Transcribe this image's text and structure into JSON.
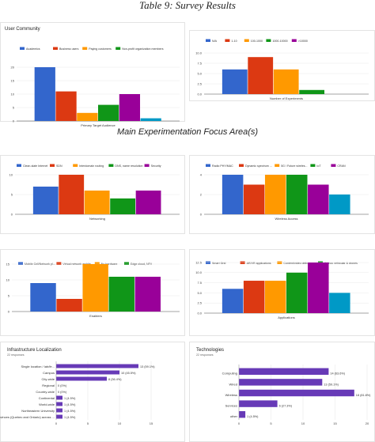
{
  "page": {
    "title": "Table 9: Survey Results",
    "section_title": "Main Experimentation Focus Area(s)"
  },
  "chart_data": [
    {
      "id": "user-community",
      "type": "bar",
      "title": "User Community",
      "xlabel": "Primary Target Audience",
      "ylim": [
        0,
        20
      ],
      "yticks": [
        "0",
        "5",
        "10",
        "15",
        "20"
      ],
      "categories": [
        ""
      ],
      "series": [
        {
          "name": "Academics",
          "values": [
            20
          ],
          "color": "#3366cc"
        },
        {
          "name": "Business users",
          "values": [
            11
          ],
          "color": "#dc3912"
        },
        {
          "name": "Paying customers",
          "values": [
            3
          ],
          "color": "#ff9900"
        },
        {
          "name": "Non-profit organization members",
          "values": [
            6
          ],
          "color": "#109618"
        },
        {
          "name": "",
          "values": [
            10
          ],
          "color": "#990099"
        },
        {
          "name": "",
          "values": [
            1
          ],
          "color": "#0099c6"
        }
      ],
      "legend": "top"
    },
    {
      "id": "num-experiments",
      "type": "bar",
      "title": "",
      "xlabel": "Number of Experiments",
      "ylim": [
        0,
        10
      ],
      "yticks": [
        "0.0",
        "2.5",
        "5.0",
        "7.5",
        "10.0"
      ],
      "categories": [
        ""
      ],
      "series": [
        {
          "name": "N/A",
          "values": [
            6
          ],
          "color": "#3366cc"
        },
        {
          "name": "1-10",
          "values": [
            9
          ],
          "color": "#dc3912"
        },
        {
          "name": "100-1000",
          "values": [
            6
          ],
          "color": "#ff9900"
        },
        {
          "name": "1000-10000",
          "values": [
            1
          ],
          "color": "#109618"
        },
        {
          "name": ">10000",
          "values": [
            0
          ],
          "color": "#990099"
        }
      ],
      "legend": "top"
    },
    {
      "id": "networking",
      "type": "bar",
      "title": "",
      "xlabel": "Networking",
      "ylim": [
        0,
        10
      ],
      "yticks": [
        "0",
        "5",
        "10"
      ],
      "categories": [
        ""
      ],
      "series": [
        {
          "name": "Clean-slate Internet",
          "values": [
            7
          ],
          "color": "#3366cc"
        },
        {
          "name": "SDN",
          "values": [
            11
          ],
          "color": "#dc3912"
        },
        {
          "name": "Interdomain routing",
          "values": [
            6
          ],
          "color": "#ff9900"
        },
        {
          "name": "DNS, name resolution",
          "values": [
            4
          ],
          "color": "#109618"
        },
        {
          "name": "Security",
          "values": [
            6
          ],
          "color": "#990099"
        }
      ],
      "legend": "top"
    },
    {
      "id": "wireless",
      "type": "bar",
      "title": "",
      "xlabel": "Wireless Access",
      "ylim": [
        0,
        4
      ],
      "yticks": [
        "0",
        "2",
        "4"
      ],
      "categories": [
        ""
      ],
      "series": [
        {
          "name": "Radio PHY/MAC",
          "values": [
            4
          ],
          "color": "#3366cc"
        },
        {
          "name": "Dynamic spectrum ...",
          "values": [
            3
          ],
          "color": "#dc3912"
        },
        {
          "name": "5G / Future wireles...",
          "values": [
            4
          ],
          "color": "#ff9900"
        },
        {
          "name": "IoT",
          "values": [
            4
          ],
          "color": "#109618"
        },
        {
          "name": "CRAN",
          "values": [
            3
          ],
          "color": "#990099"
        },
        {
          "name": "",
          "values": [
            2
          ],
          "color": "#0099c6"
        }
      ],
      "legend": "top"
    },
    {
      "id": "enablers",
      "type": "bar",
      "title": "",
      "xlabel": "Enablers",
      "ylim": [
        0,
        15
      ],
      "yticks": [
        "0",
        "5",
        "10",
        "15"
      ],
      "categories": [
        ""
      ],
      "series": [
        {
          "name": "Mobile Cell/Network pl...",
          "values": [
            9
          ],
          "color": "#3366cc"
        },
        {
          "name": "Virtual network archite...",
          "values": [
            4
          ],
          "color": "#dc3912"
        },
        {
          "name": "Nu hardware",
          "values": [
            16
          ],
          "color": "#ff9900"
        },
        {
          "name": "Edge cloud, NFV",
          "values": [
            11
          ],
          "color": "#109618"
        },
        {
          "name": "",
          "values": [
            11
          ],
          "color": "#990099"
        }
      ],
      "legend": "top"
    },
    {
      "id": "applications",
      "type": "bar",
      "title": "",
      "xlabel": "Applications",
      "ylim": [
        0,
        12.5
      ],
      "yticks": [
        "0.0",
        "2.5",
        "5.0",
        "7.5",
        "10.0",
        "12.5"
      ],
      "categories": [
        ""
      ],
      "series": [
        {
          "name": "Smart Grid",
          "values": [
            6
          ],
          "color": "#3366cc"
        },
        {
          "name": "AR/VR applications",
          "values": [
            8
          ],
          "color": "#dc3912"
        },
        {
          "name": "Content/video delivery",
          "values": [
            8
          ],
          "color": "#ff9900"
        },
        {
          "name": "Ad hoc vehicular & drones",
          "values": [
            10
          ],
          "color": "#109618"
        },
        {
          "name": "",
          "values": [
            13
          ],
          "color": "#990099"
        },
        {
          "name": "",
          "values": [
            5
          ],
          "color": "#0099c6"
        }
      ],
      "legend": "top"
    },
    {
      "id": "infrastructure",
      "type": "bar",
      "orientation": "horizontal",
      "title": "Infrastructure Localization",
      "subtitle": "22 responses",
      "xlim": [
        0,
        15
      ],
      "xticks": [
        "0",
        "5",
        "10",
        "15"
      ],
      "categories": [
        "Single location / lab/fe...",
        "Campus",
        "City-wide",
        "Regional",
        "Country-wide",
        "Continental",
        "World-wide",
        "Northeastern University",
        "2 provinces (Quebec and Ontario) across ..."
      ],
      "values": [
        13,
        10,
        8,
        0,
        0,
        1,
        1,
        1,
        1
      ],
      "labels": [
        "13 (59.1%)",
        "10 (45.5%)",
        "8 (36.4%)",
        "0 (0%)",
        "0 (0%)",
        "1 (4.5%)",
        "1 (4.5%)",
        "1 (4.5%)",
        "1 (4.5%)"
      ],
      "color": "#673ab7"
    },
    {
      "id": "technologies",
      "type": "bar",
      "orientation": "horizontal",
      "title": "Technologies",
      "subtitle": "22 responses",
      "xlim": [
        0,
        20
      ],
      "xticks": [
        "0",
        "5",
        "10",
        "15",
        "20"
      ],
      "categories": [
        "Computing",
        "Wired",
        "Wireless",
        "Services",
        "other"
      ],
      "values": [
        14,
        13,
        18,
        6,
        1
      ],
      "labels": [
        "14 (63.6%)",
        "13 (59.1%)",
        "18 (81.8%)",
        "6 (27.3%)",
        "1 (4.5%)"
      ],
      "color": "#673ab7"
    }
  ]
}
